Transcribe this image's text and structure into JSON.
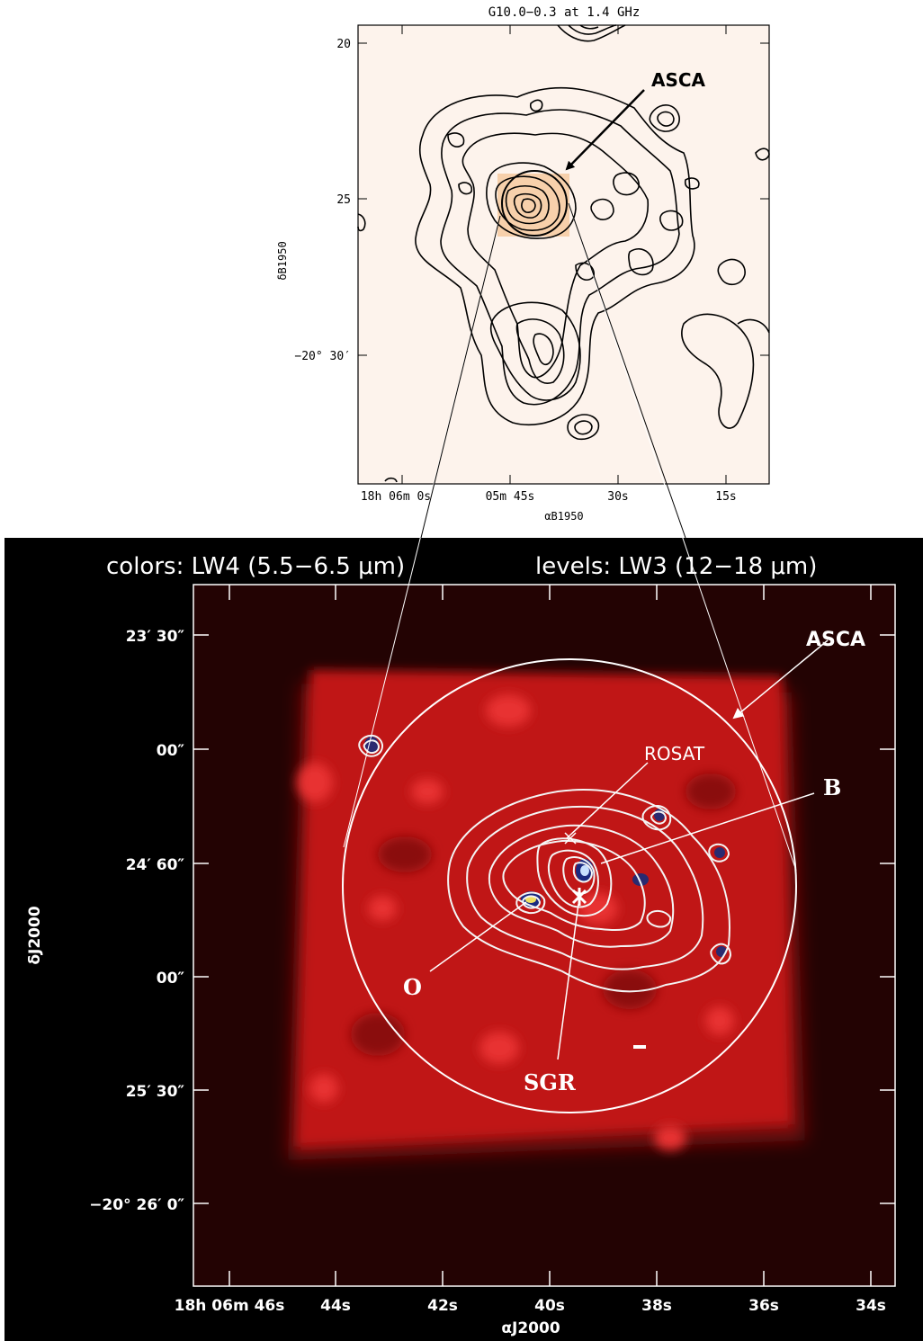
{
  "top_panel": {
    "title": "G10.0−0.3 at 1.4 GHz",
    "bg_color": "#fdf3ec",
    "source_fill": "#f6c9a0",
    "y_ticks": [
      "20",
      "25",
      "−20° 30′"
    ],
    "x_ticks": [
      "18h 06m 0s",
      "05m 45s",
      "30s",
      "15s"
    ],
    "y_axis_label": "δB1950",
    "x_axis_label": "αB1950",
    "arrow_label": "ASCA"
  },
  "bottom_panel": {
    "title_left": "colors: LW4 (5.5−6.5 μm)",
    "title_right": "levels: LW3 (12−18 μm)",
    "bg_color": "#000000",
    "frame_color": "#230303",
    "image_color": "#c01414",
    "y_ticks": [
      "23′ 30″",
      "00″",
      "24′ 60″",
      "00″",
      "25′ 30″",
      "−20° 26′  0″"
    ],
    "x_ticks": [
      "18h 06m 46s",
      "44s",
      "42s",
      "40s",
      "38s",
      "36s",
      "34s"
    ],
    "y_axis_label": "δJ2000",
    "x_axis_label": "αJ2000",
    "labels": {
      "asca": "ASCA",
      "rosat": "ROSAT",
      "b": "B",
      "o": "O",
      "sgr": "SGR"
    }
  }
}
